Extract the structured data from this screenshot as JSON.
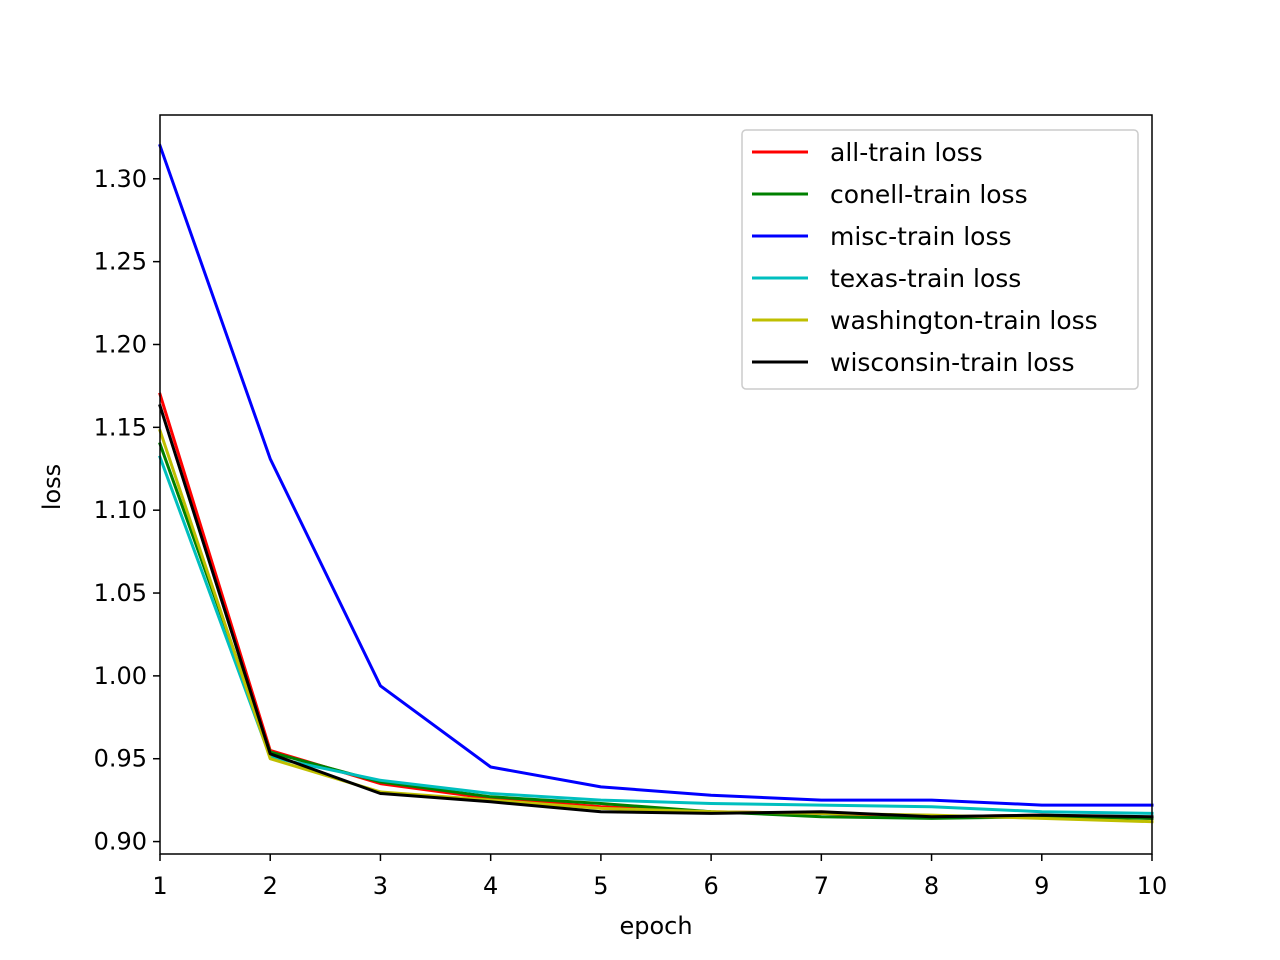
{
  "chart_data": {
    "type": "line",
    "title": "",
    "xlabel": "epoch",
    "ylabel": "loss",
    "xlim": [
      1,
      10
    ],
    "ylim": [
      0.8925,
      1.3385
    ],
    "x": [
      1,
      2,
      3,
      4,
      5,
      6,
      7,
      8,
      9,
      10
    ],
    "xticks": [
      "1",
      "2",
      "3",
      "4",
      "5",
      "6",
      "7",
      "8",
      "9",
      "10"
    ],
    "yticks": [
      "0.90",
      "0.95",
      "1.00",
      "1.05",
      "1.10",
      "1.15",
      "1.20",
      "1.25",
      "1.30"
    ],
    "grid": false,
    "legend_position": "top-right",
    "series": [
      {
        "name": "all-train loss",
        "color": "#ff0000",
        "values": [
          1.17,
          0.955,
          0.935,
          0.926,
          0.921,
          0.918,
          0.917,
          0.915,
          0.916,
          0.914
        ]
      },
      {
        "name": "conell-train loss",
        "color": "#008000",
        "values": [
          1.14,
          0.954,
          0.936,
          0.927,
          0.923,
          0.918,
          0.915,
          0.914,
          0.915,
          0.914
        ]
      },
      {
        "name": "misc-train loss",
        "color": "#0000ff",
        "values": [
          1.32,
          1.131,
          0.994,
          0.945,
          0.933,
          0.928,
          0.925,
          0.925,
          0.922,
          0.922
        ]
      },
      {
        "name": "texas-train loss",
        "color": "#00bfbf",
        "values": [
          1.132,
          0.951,
          0.937,
          0.929,
          0.925,
          0.923,
          0.922,
          0.921,
          0.918,
          0.917
        ]
      },
      {
        "name": "washington-train loss",
        "color": "#bfbf00",
        "values": [
          1.148,
          0.95,
          0.93,
          0.925,
          0.92,
          0.918,
          0.917,
          0.916,
          0.914,
          0.912
        ]
      },
      {
        "name": "wisconsin-train loss",
        "color": "#000000",
        "values": [
          1.163,
          0.953,
          0.929,
          0.924,
          0.918,
          0.917,
          0.918,
          0.915,
          0.916,
          0.915
        ]
      }
    ]
  }
}
